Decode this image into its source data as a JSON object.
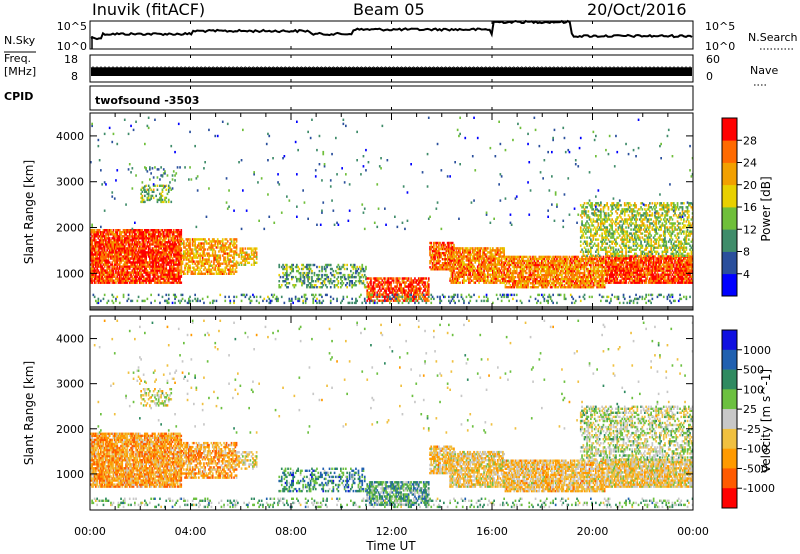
{
  "header": {
    "station": "Inuvik (fitACF)",
    "beam": "Beam 05",
    "date": "20/Oct/2016"
  },
  "strips": {
    "nsky": {
      "left_label": "N.Sky",
      "right_label": "N.Search",
      "left_ticks": [
        "10^5",
        "10^0"
      ],
      "right_ticks": [
        "10^5",
        "10^0"
      ]
    },
    "freq": {
      "left_label_1": "Freq.",
      "left_label_2": "[MHz]",
      "right_label": "Nave",
      "left_ticks": [
        "18",
        "8"
      ],
      "right_ticks": [
        "60",
        "0"
      ]
    },
    "cpid": {
      "label": "CPID",
      "value": "twofsound -3503"
    }
  },
  "time_axis": {
    "label": "Time UT",
    "ticks": [
      "00:00",
      "04:00",
      "08:00",
      "12:00",
      "16:00",
      "20:00",
      "00:00"
    ]
  },
  "colors": {
    "power_scale": [
      "#0000ff",
      "#2a4f9c",
      "#3f8c6a",
      "#6fbf3a",
      "#e8d000",
      "#f2a000",
      "#ff6a00",
      "#ff0000"
    ],
    "velocity_scale": [
      "#ff0000",
      "#ff5a00",
      "#ff9a00",
      "#f0c040",
      "#c8c8c8",
      "#6cc040",
      "#2f8a60",
      "#2060b0",
      "#1010e0"
    ]
  },
  "chart_data": [
    {
      "type": "heatmap",
      "name": "power",
      "ylabel": "Slant Range [km]",
      "xlabel": "",
      "yticks": [
        1000,
        2000,
        3000,
        4000
      ],
      "ylim": [
        200,
        4500
      ],
      "xlim_hours": [
        0,
        24
      ],
      "colorbar_label": "Power [dB]",
      "colorbar_ticks": [
        "4",
        "8",
        "12",
        "16",
        "20",
        "24",
        "28"
      ],
      "colorbar_range": [
        0,
        31
      ]
    },
    {
      "type": "heatmap",
      "name": "velocity",
      "ylabel": "Slant Range [km]",
      "xlabel": "Time UT",
      "yticks": [
        1000,
        2000,
        3000,
        4000
      ],
      "ylim": [
        200,
        4500
      ],
      "xlim_hours": [
        0,
        24
      ],
      "colorbar_label": "Velocity [m s^-1]",
      "colorbar_ticks": [
        "1000",
        "500",
        "100",
        "25",
        "-25",
        "-100",
        "-500",
        "-1000"
      ]
    }
  ]
}
